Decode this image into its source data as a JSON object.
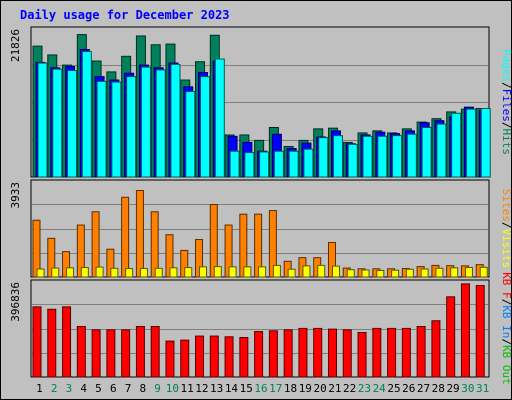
{
  "title": "Daily usage for December 2023",
  "colors": {
    "hits": "#00805c",
    "files": "#0000ff",
    "pages": "#00ffff",
    "visits": "#ffff00",
    "sites": "#ff8000",
    "kb_in": "#0080ff",
    "kb_out": "#00c000",
    "kb_f": "#ff0000",
    "weekend_day": "#00805c",
    "weekday": "#000000"
  },
  "chart_data": [
    {
      "type": "bar",
      "panel": "hits-files-pages",
      "ymax_label": "21826",
      "ylim": [
        0,
        21826
      ],
      "grid": true,
      "legend": [
        {
          "text": "Pages",
          "color": "#00ffff"
        },
        {
          "text": "Files",
          "color": "#0000ff"
        },
        {
          "text": "Hits",
          "color": "#00805c"
        }
      ],
      "categories": [
        "1",
        "2",
        "3",
        "4",
        "5",
        "6",
        "7",
        "8",
        "9",
        "10",
        "11",
        "12",
        "13",
        "14",
        "15",
        "16",
        "17",
        "18",
        "19",
        "20",
        "21",
        "22",
        "23",
        "24",
        "25",
        "26",
        "27",
        "28",
        "29",
        "30",
        "31"
      ],
      "series": [
        {
          "name": "Hits",
          "color": "#00805c",
          "values": [
            19300,
            18000,
            16500,
            21000,
            17100,
            15500,
            17800,
            20800,
            19500,
            19600,
            14300,
            17000,
            20900,
            6200,
            6200,
            5400,
            7300,
            4500,
            5400,
            7100,
            7200,
            5100,
            6500,
            6800,
            6500,
            7100,
            8100,
            8600,
            9600,
            10000,
            10100
          ]
        },
        {
          "name": "Files",
          "color": "#0000ff",
          "values": [
            16900,
            16100,
            16300,
            18800,
            14800,
            14300,
            15300,
            16500,
            16100,
            16800,
            13300,
            15400,
            17100,
            6000,
            5100,
            3800,
            6300,
            4200,
            5000,
            5900,
            6800,
            4900,
            6200,
            6600,
            6400,
            6800,
            8000,
            8300,
            8900,
            10300,
            9800
          ]
        },
        {
          "name": "Pages",
          "color": "#00ffff",
          "values": [
            16800,
            15900,
            15700,
            18500,
            14100,
            14000,
            14800,
            16200,
            15800,
            16600,
            12600,
            14800,
            17400,
            3800,
            3600,
            3700,
            3800,
            3800,
            4100,
            5800,
            6100,
            4800,
            6000,
            6000,
            6100,
            6300,
            7300,
            7800,
            9400,
            10000,
            10100
          ]
        }
      ]
    },
    {
      "type": "bar",
      "panel": "visits-sites",
      "ymax_label": "3933",
      "ylim": [
        0,
        3933
      ],
      "grid": true,
      "legend": [
        {
          "text": "Sites",
          "color": "#ff8000"
        },
        {
          "text": "Visits",
          "color": "#ffff00"
        }
      ],
      "categories": [
        "1",
        "2",
        "3",
        "4",
        "5",
        "6",
        "7",
        "8",
        "9",
        "10",
        "11",
        "12",
        "13",
        "14",
        "15",
        "16",
        "17",
        "18",
        "19",
        "20",
        "21",
        "22",
        "23",
        "24",
        "25",
        "26",
        "27",
        "28",
        "29",
        "30",
        "31"
      ],
      "series": [
        {
          "name": "Sites",
          "color": "#ff8000",
          "values": [
            2350,
            1600,
            1050,
            2150,
            2700,
            1150,
            3300,
            3580,
            2700,
            1750,
            1100,
            1550,
            3000,
            2150,
            2600,
            2600,
            2750,
            650,
            800,
            800,
            1430,
            370,
            340,
            340,
            340,
            350,
            430,
            480,
            470,
            460,
            510
          ]
        },
        {
          "name": "Visits",
          "color": "#ffff00",
          "values": [
            330,
            370,
            380,
            390,
            410,
            360,
            350,
            350,
            360,
            380,
            390,
            420,
            430,
            420,
            420,
            420,
            480,
            320,
            460,
            480,
            450,
            300,
            290,
            270,
            280,
            320,
            330,
            360,
            380,
            390,
            400
          ]
        }
      ]
    },
    {
      "type": "bar",
      "panel": "kbytes",
      "ymax_label": "396836",
      "ylim": [
        0,
        396836
      ],
      "grid": true,
      "legend": [
        {
          "text": "KB F",
          "color": "#ff0000"
        },
        {
          "text": "KB In",
          "color": "#0080ff"
        },
        {
          "text": "KB Out",
          "color": "#00c000"
        }
      ],
      "categories": [
        "1",
        "2",
        "3",
        "4",
        "5",
        "6",
        "7",
        "8",
        "9",
        "10",
        "11",
        "12",
        "13",
        "14",
        "15",
        "16",
        "17",
        "18",
        "19",
        "20",
        "21",
        "22",
        "23",
        "24",
        "25",
        "26",
        "27",
        "28",
        "29",
        "30",
        "31"
      ],
      "series": [
        {
          "name": "KB F",
          "color": "#ff0000",
          "values": [
            293000,
            283000,
            293000,
            211000,
            197000,
            197000,
            197000,
            211000,
            211000,
            150000,
            154000,
            171000,
            171000,
            168000,
            165000,
            190000,
            193000,
            197000,
            203000,
            203000,
            200000,
            197000,
            186000,
            203000,
            203000,
            203000,
            211000,
            235000,
            335000,
            389000,
            382000
          ]
        }
      ]
    }
  ],
  "day_labels": {
    "weekend": [
      "2",
      "3",
      "9",
      "10",
      "16",
      "17",
      "23",
      "24",
      "30",
      "31"
    ]
  }
}
